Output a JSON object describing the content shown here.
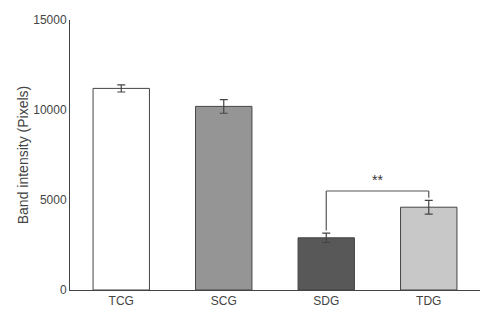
{
  "chart_data": {
    "type": "bar",
    "categories": [
      "TCG",
      "SCG",
      "SDG",
      "TDG"
    ],
    "values": [
      11200,
      10200,
      2900,
      4600
    ],
    "errors": [
      200,
      380,
      260,
      380
    ],
    "colors": [
      "#ffffff",
      "#959595",
      "#585858",
      "#c8c8c8"
    ],
    "ylabel": "Band intensity (Pixels)",
    "ylim": [
      0,
      15000
    ],
    "yticks": [
      0,
      5000,
      10000,
      15000
    ],
    "grid": false,
    "annotations": [
      {
        "text": "**",
        "categories": [
          "SDG",
          "TDG"
        ],
        "y": 5500
      }
    ]
  }
}
